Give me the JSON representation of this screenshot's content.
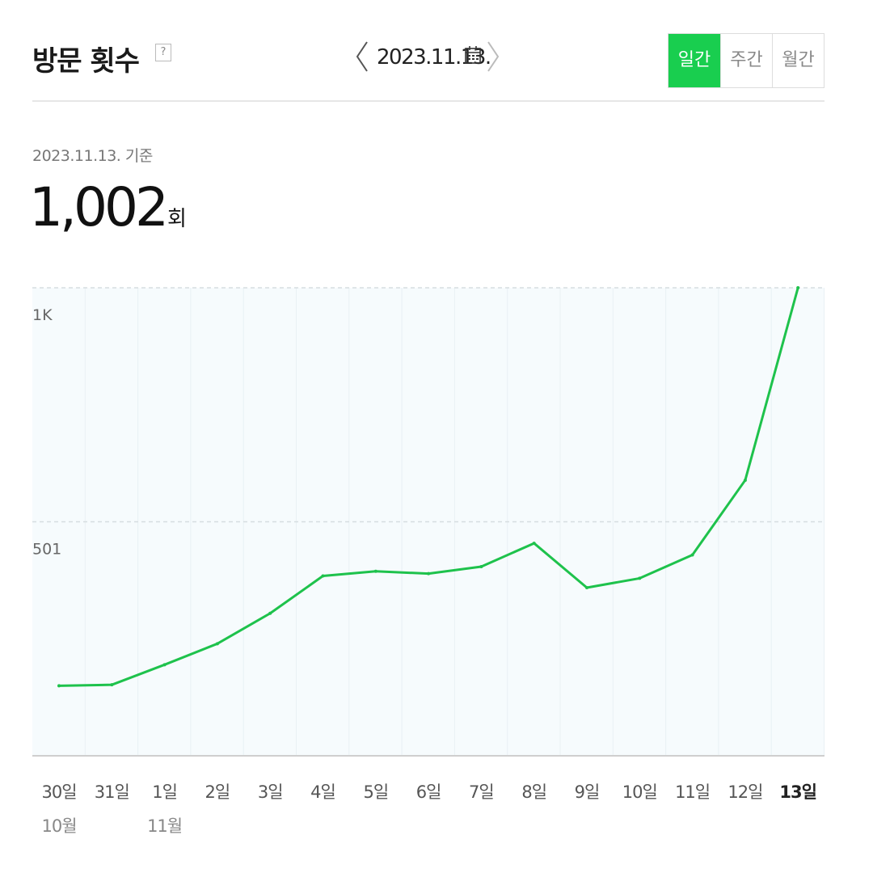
{
  "header": {
    "title": "방문 횟수",
    "help_glyph": "?",
    "date": "2023.11.13.",
    "periods": [
      {
        "label": "일간",
        "active": true
      },
      {
        "label": "주간",
        "active": false
      },
      {
        "label": "월간",
        "active": false
      }
    ]
  },
  "summary": {
    "basis": "2023.11.13. 기준",
    "value": "1,002",
    "unit": "회"
  },
  "colors": {
    "accent": "#19ce4f",
    "line": "#1ec24c",
    "plot_bg": "#f6fbfd"
  },
  "chart_data": {
    "type": "line",
    "title": "",
    "xlabel": "",
    "ylabel": "",
    "categories": [
      "30일",
      "31일",
      "1일",
      "2일",
      "3일",
      "4일",
      "5일",
      "6일",
      "7일",
      "8일",
      "9일",
      "10일",
      "11일",
      "12일",
      "13일"
    ],
    "month_labels": [
      {
        "index": 0,
        "label": "10월"
      },
      {
        "index": 2,
        "label": "11월"
      }
    ],
    "y_ticks": [
      {
        "value": 501,
        "label": "501"
      },
      {
        "value": 1002,
        "label": "1K"
      }
    ],
    "ylim": [
      0,
      1002
    ],
    "series": [
      {
        "values": [
          150,
          152,
          195,
          240,
          305,
          385,
          395,
          390,
          405,
          455,
          360,
          380,
          430,
          590,
          1002
        ]
      }
    ],
    "grid": true,
    "legend": "none"
  }
}
